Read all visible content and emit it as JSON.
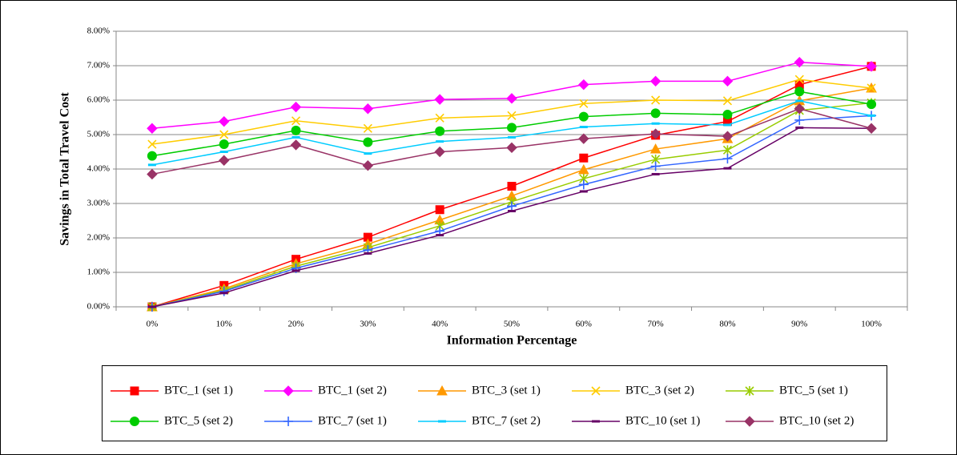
{
  "chart_data": {
    "type": "line",
    "x_label": "Information Percentage",
    "y_label": "Savings in Total Travel Cost",
    "categories": [
      "0%",
      "10%",
      "20%",
      "30%",
      "40%",
      "50%",
      "60%",
      "70%",
      "80%",
      "90%",
      "100%"
    ],
    "ylim": [
      0,
      8
    ],
    "yticks": [
      {
        "value": 0,
        "label": "0.00%"
      },
      {
        "value": 1,
        "label": "1.00%"
      },
      {
        "value": 2,
        "label": "2.00%"
      },
      {
        "value": 3,
        "label": "3.00%"
      },
      {
        "value": 4,
        "label": "4.00%"
      },
      {
        "value": 5,
        "label": "5.00%"
      },
      {
        "value": 6,
        "label": "6.00%"
      },
      {
        "value": 7,
        "label": "7.00%"
      },
      {
        "value": 8,
        "label": "8.00%"
      }
    ],
    "grid": true,
    "legend": "bottom",
    "series": [
      {
        "name": "BTC_1 (set 1)",
        "color": "#ff0000",
        "marker": "square",
        "values": [
          0,
          0.62,
          1.38,
          2.02,
          2.82,
          3.5,
          4.32,
          4.98,
          5.38,
          6.45,
          6.98
        ]
      },
      {
        "name": "BTC_1 (set 2)",
        "color": "#ff00ff",
        "marker": "diamond",
        "values": [
          5.18,
          5.38,
          5.8,
          5.75,
          6.02,
          6.05,
          6.45,
          6.55,
          6.55,
          7.1,
          6.98
        ]
      },
      {
        "name": "BTC_3 (set 1)",
        "color": "#ff9900",
        "marker": "triangle",
        "values": [
          0,
          0.52,
          1.25,
          1.82,
          2.52,
          3.22,
          3.98,
          4.58,
          4.88,
          5.98,
          6.35
        ]
      },
      {
        "name": "BTC_3 (set 2)",
        "color": "#ffcc00",
        "marker": "x",
        "values": [
          4.72,
          5.0,
          5.4,
          5.18,
          5.48,
          5.55,
          5.9,
          6.0,
          5.98,
          6.6,
          6.35
        ]
      },
      {
        "name": "BTC_5 (set 1)",
        "color": "#99cc00",
        "marker": "star",
        "values": [
          0,
          0.48,
          1.18,
          1.72,
          2.35,
          3.05,
          3.72,
          4.28,
          4.55,
          5.7,
          5.92
        ]
      },
      {
        "name": "BTC_5 (set 2)",
        "color": "#00cc00",
        "marker": "circle",
        "values": [
          4.38,
          4.72,
          5.12,
          4.78,
          5.1,
          5.2,
          5.52,
          5.62,
          5.58,
          6.25,
          5.88
        ]
      },
      {
        "name": "BTC_7 (set 1)",
        "color": "#3366ff",
        "marker": "plus",
        "values": [
          0,
          0.45,
          1.12,
          1.65,
          2.2,
          2.92,
          3.55,
          4.08,
          4.3,
          5.42,
          5.55
        ]
      },
      {
        "name": "BTC_7 (set 2)",
        "color": "#00ccff",
        "marker": "dash",
        "values": [
          4.12,
          4.5,
          4.92,
          4.45,
          4.8,
          4.92,
          5.22,
          5.32,
          5.28,
          5.98,
          5.55
        ]
      },
      {
        "name": "BTC_10 (set 1)",
        "color": "#660066",
        "marker": "dash",
        "values": [
          0,
          0.4,
          1.05,
          1.55,
          2.08,
          2.78,
          3.35,
          3.85,
          4.02,
          5.2,
          5.18
        ]
      },
      {
        "name": "BTC_10 (set 2)",
        "color": "#993366",
        "marker": "diamond",
        "values": [
          3.85,
          4.25,
          4.7,
          4.1,
          4.5,
          4.62,
          4.88,
          5.02,
          4.95,
          5.75,
          5.18
        ]
      }
    ]
  }
}
